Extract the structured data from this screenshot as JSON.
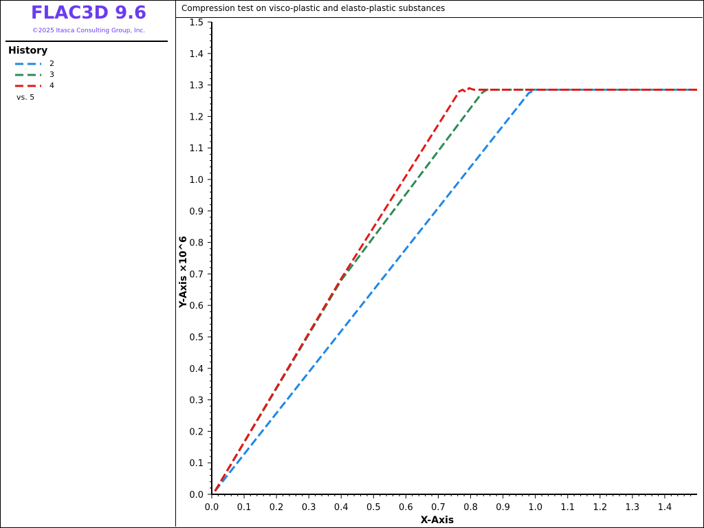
{
  "app": {
    "title": "FLAC3D 9.6",
    "copyright": "©2025 Itasca Consulting Group, Inc."
  },
  "legend": {
    "title": "History",
    "items": [
      {
        "label": "2",
        "color": "#1f87e8"
      },
      {
        "label": "3",
        "color": "#2e8b57"
      },
      {
        "label": "4",
        "color": "#e11919"
      }
    ],
    "vs_label": "vs. 5"
  },
  "chart_data": {
    "type": "line",
    "title": "Compression test on visco-plastic and elasto-plastic substances",
    "xlabel": "X-Axis",
    "ylabel": "Y-Axis ×10^6",
    "xlim": [
      0,
      1.5
    ],
    "ylim": [
      0,
      1.5
    ],
    "xticks": [
      "0.0",
      "0.1",
      "0.2",
      "0.3",
      "0.4",
      "0.5",
      "0.6",
      "0.7",
      "0.8",
      "0.9",
      "1.0",
      "1.1",
      "1.2",
      "1.3",
      "1.4"
    ],
    "yticks": [
      "0.0",
      "0.1",
      "0.2",
      "0.3",
      "0.4",
      "0.5",
      "0.6",
      "0.7",
      "0.8",
      "0.9",
      "1.0",
      "1.1",
      "1.2",
      "1.3",
      "1.4",
      "1.5"
    ],
    "grid": false,
    "legend_position": "left-panel",
    "series": [
      {
        "name": "2",
        "color": "#1f87e8",
        "x": [
          0.01,
          0.98,
          1.0,
          1.5
        ],
        "y": [
          0.01,
          1.275,
          1.285,
          1.285
        ]
      },
      {
        "name": "3",
        "color": "#2e8b57",
        "x": [
          0.01,
          0.4,
          0.835,
          0.85,
          1.5
        ],
        "y": [
          0.01,
          0.68,
          1.275,
          1.285,
          1.285
        ]
      },
      {
        "name": "4",
        "color": "#e11919",
        "x": [
          0.01,
          0.4,
          0.765,
          0.775,
          0.785,
          0.795,
          0.81,
          1.5
        ],
        "y": [
          0.01,
          0.685,
          1.28,
          1.285,
          1.278,
          1.29,
          1.285,
          1.285
        ]
      }
    ]
  }
}
